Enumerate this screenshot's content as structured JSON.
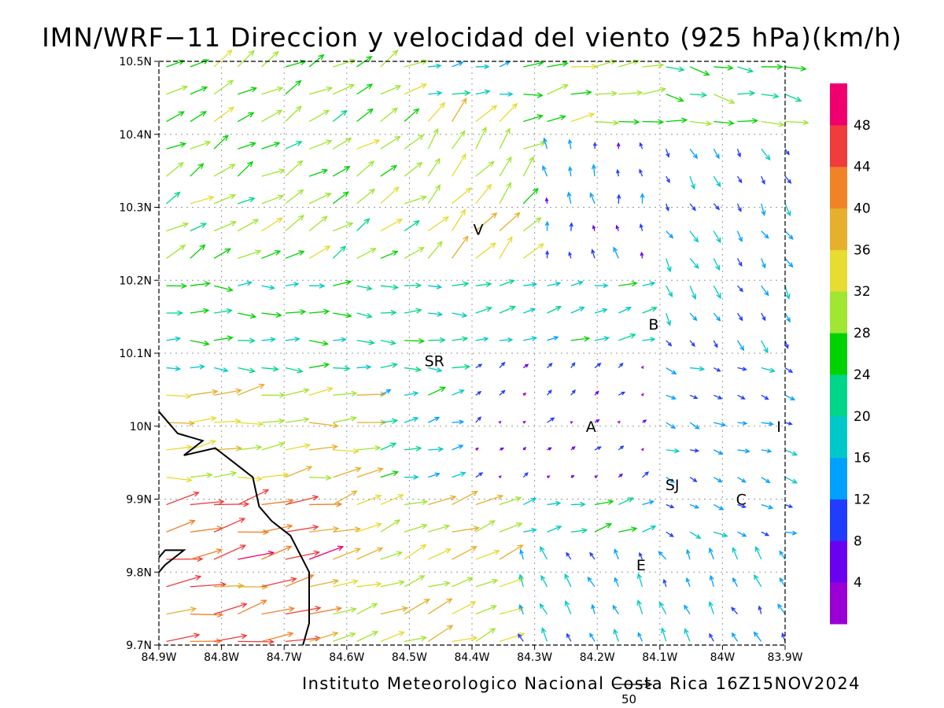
{
  "title": "IMN/WRF−11 Direccion y velocidad del viento (925 hPa)(km/h)",
  "credit": "Instituto Meteorologico Nacional Costa Rica 16Z15NOV2024",
  "scale_vector": {
    "label": "50",
    "value": 50
  },
  "map": {
    "lon_range": [
      -84.9,
      -83.9
    ],
    "lat_range": [
      9.7,
      10.5
    ],
    "x_ticks": [
      "84.9W",
      "84.8W",
      "84.7W",
      "84.6W",
      "84.5W",
      "84.4W",
      "84.3W",
      "84.2W",
      "84.1W",
      "84W",
      "83.9W"
    ],
    "y_ticks": [
      "10.5N",
      "10.4N",
      "10.3N",
      "10.2N",
      "10.1N",
      "10N",
      "9.9N",
      "9.8N",
      "9.7N"
    ],
    "grid": true,
    "cities": [
      {
        "label": "V",
        "lon": -84.39,
        "lat": 10.27
      },
      {
        "label": "B",
        "lon": -84.11,
        "lat": 10.14
      },
      {
        "label": "SR",
        "lon": -84.46,
        "lat": 10.09
      },
      {
        "label": "A",
        "lon": -84.21,
        "lat": 10.0
      },
      {
        "label": "I",
        "lon": -83.91,
        "lat": 10.0
      },
      {
        "label": "SJ",
        "lon": -84.08,
        "lat": 9.92
      },
      {
        "label": "C",
        "lon": -83.97,
        "lat": 9.9
      },
      {
        "label": "E",
        "lon": -84.13,
        "lat": 9.81
      }
    ],
    "coastline": [
      [
        -84.9,
        10.02
      ],
      [
        -84.87,
        9.99
      ],
      [
        -84.83,
        9.98
      ],
      [
        -84.86,
        9.96
      ],
      [
        -84.81,
        9.97
      ],
      [
        -84.78,
        9.95
      ],
      [
        -84.75,
        9.93
      ],
      [
        -84.74,
        9.89
      ],
      [
        -84.72,
        9.87
      ],
      [
        -84.69,
        9.85
      ],
      [
        -84.66,
        9.8
      ],
      [
        -84.66,
        9.73
      ],
      [
        -84.67,
        9.7
      ]
    ],
    "coastline2": [
      [
        -84.9,
        9.8
      ],
      [
        -84.89,
        9.81
      ],
      [
        -84.86,
        9.83
      ],
      [
        -84.89,
        9.83
      ],
      [
        -84.9,
        9.82
      ]
    ]
  },
  "colorbar": {
    "colors": [
      "#9a00d6",
      "#6a00f0",
      "#1f3cff",
      "#00a0ff",
      "#00c8c8",
      "#00d68a",
      "#00d200",
      "#a0e632",
      "#e6dc32",
      "#e6af2d",
      "#f08228",
      "#f03c3c",
      "#f0006e"
    ],
    "labels": [
      "4",
      "8",
      "12",
      "16",
      "20",
      "24",
      "28",
      "32",
      "36",
      "40",
      "44",
      "48"
    ],
    "bounds": [
      0,
      4,
      8,
      12,
      16,
      20,
      24,
      28,
      32,
      36,
      40,
      44,
      48,
      52
    ]
  },
  "wind_field": {
    "description_units": "km/h",
    "regions": [
      {
        "lon": [
          -84.9,
          -84.65
        ],
        "lat": [
          9.7,
          9.9
        ],
        "dir": 12,
        "speed": 44
      },
      {
        "lon": [
          -84.9,
          -84.55
        ],
        "lat": [
          9.9,
          10.05
        ],
        "dir": 8,
        "speed": 34
      },
      {
        "lon": [
          -84.9,
          -84.4
        ],
        "lat": [
          10.05,
          10.2
        ],
        "dir": 0,
        "speed": 22
      },
      {
        "lon": [
          -84.9,
          -84.5
        ],
        "lat": [
          10.2,
          10.5
        ],
        "dir": 30,
        "speed": 28
      },
      {
        "lon": [
          -84.5,
          -84.3
        ],
        "lat": [
          10.2,
          10.45
        ],
        "dir": 50,
        "speed": 32
      },
      {
        "lon": [
          -84.35,
          -84.1
        ],
        "lat": [
          10.35,
          10.5
        ],
        "dir": 10,
        "speed": 30
      },
      {
        "lon": [
          -84.1,
          -83.9
        ],
        "lat": [
          10.4,
          10.5
        ],
        "dir": -10,
        "speed": 26
      },
      {
        "lon": [
          -84.3,
          -84.1
        ],
        "lat": [
          10.2,
          10.4
        ],
        "dir": 100,
        "speed": 12
      },
      {
        "lon": [
          -84.1,
          -83.9
        ],
        "lat": [
          10.1,
          10.4
        ],
        "dir": -60,
        "speed": 14
      },
      {
        "lon": [
          -84.4,
          -84.1
        ],
        "lat": [
          9.9,
          10.1
        ],
        "dir": 40,
        "speed": 6
      },
      {
        "lon": [
          -84.1,
          -83.9
        ],
        "lat": [
          9.85,
          10.1
        ],
        "dir": -20,
        "speed": 14
      },
      {
        "lon": [
          -84.65,
          -84.35
        ],
        "lat": [
          9.7,
          9.9
        ],
        "dir": 20,
        "speed": 34
      },
      {
        "lon": [
          -84.35,
          -83.9
        ],
        "lat": [
          9.7,
          9.85
        ],
        "dir": 120,
        "speed": 14
      }
    ]
  }
}
